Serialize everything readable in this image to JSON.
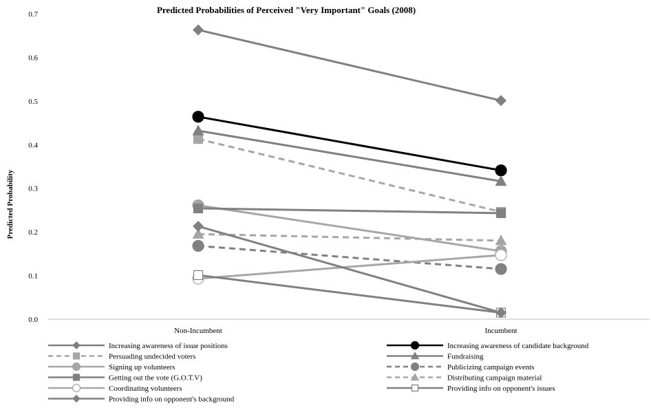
{
  "chart_data": {
    "type": "line",
    "title": "Predicted Probabilities of Perceived \"Very Important\" Goals (2008)",
    "xlabel": "",
    "ylabel": "Predicted Probability",
    "categories": [
      "Non-Incumbent",
      "Incumbent"
    ],
    "ylim": [
      0,
      0.7
    ],
    "yticks": [
      "0.0",
      "0.1",
      "0.2",
      "0.3",
      "0.4",
      "0.5",
      "0.6",
      "0.7"
    ],
    "grid": false,
    "legend_position": "bottom",
    "series": [
      {
        "name": "Increasing awareness of issue positions",
        "values": [
          0.663,
          0.501
        ],
        "color": "#808080",
        "dash": "solid",
        "marker": "diamond",
        "filled": true
      },
      {
        "name": "Increasing awareness of candidate background",
        "values": [
          0.464,
          0.341
        ],
        "color": "#000000",
        "dash": "solid",
        "marker": "circle",
        "filled": true
      },
      {
        "name": "Persuading undecided voters",
        "values": [
          0.413,
          0.246
        ],
        "color": "#a6a6a6",
        "dash": "dashed",
        "marker": "square",
        "filled": true
      },
      {
        "name": "Fundraising",
        "values": [
          0.432,
          0.316
        ],
        "color": "#808080",
        "dash": "solid",
        "marker": "triangle",
        "filled": true
      },
      {
        "name": "Signing up volunteers",
        "values": [
          0.261,
          0.156
        ],
        "color": "#a6a6a6",
        "dash": "solid",
        "marker": "circle",
        "filled": true
      },
      {
        "name": "Publicizing campaign events",
        "values": [
          0.168,
          0.115
        ],
        "color": "#808080",
        "dash": "dashed",
        "marker": "circle",
        "filled": true
      },
      {
        "name": "Getting out the vote (G.O.T.V)",
        "values": [
          0.254,
          0.243
        ],
        "color": "#808080",
        "dash": "solid",
        "marker": "square",
        "filled": true
      },
      {
        "name": "Distributing campaign material",
        "values": [
          0.195,
          0.18
        ],
        "color": "#a6a6a6",
        "dash": "dashed",
        "marker": "triangle",
        "filled": true
      },
      {
        "name": "Coordinating volunteers",
        "values": [
          0.093,
          0.147
        ],
        "color": "#a6a6a6",
        "dash": "solid",
        "marker": "circle",
        "filled": false
      },
      {
        "name": "Providing info on opponent's issues",
        "values": [
          0.101,
          0.015
        ],
        "color": "#808080",
        "dash": "solid",
        "marker": "square",
        "filled": false
      },
      {
        "name": "Providing info on opponent's background",
        "values": [
          0.213,
          0.015
        ],
        "color": "#808080",
        "dash": "solid",
        "marker": "diamond",
        "filled": true
      }
    ]
  }
}
